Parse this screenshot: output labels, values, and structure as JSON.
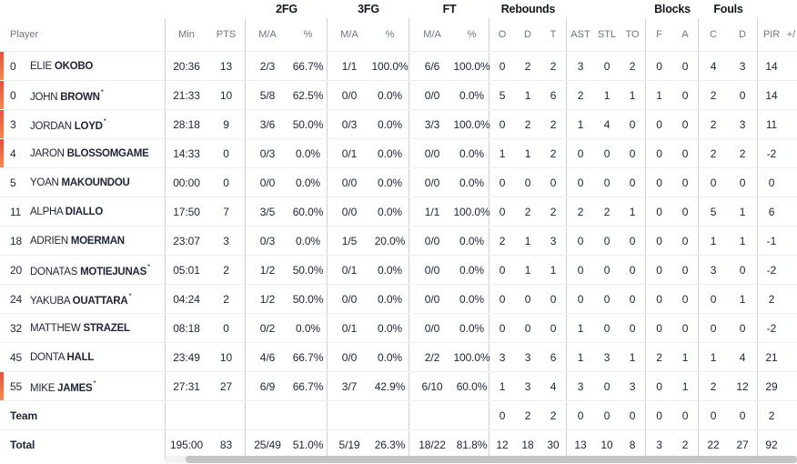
{
  "colors": {
    "on_court_bar_top": "#e84e3d",
    "on_court_bar_bottom": "#f68b4d",
    "stat_text": "#20263a",
    "header_text": "#6e7684"
  },
  "table": {
    "groups": {
      "fg2": "2FG",
      "fg3": "3FG",
      "ft": "FT",
      "rebounds": "Rebounds",
      "blocks": "Blocks",
      "fouls": "Fouls"
    },
    "columns": [
      "Player",
      "Min",
      "PTS",
      "M/A",
      "%",
      "M/A",
      "%",
      "M/A",
      "%",
      "O",
      "D",
      "T",
      "AST",
      "STL",
      "TO",
      "F",
      "A",
      "C",
      "D",
      "PIR",
      "+/"
    ],
    "team_label": "Team",
    "total_label": "Total",
    "players": [
      {
        "number": "0",
        "first": "ELIE",
        "last": "OKOBO",
        "starter": false,
        "on_court": true,
        "stats": [
          "20:36",
          "13",
          "2/3",
          "66.7%",
          "1/1",
          "100.0%",
          "6/6",
          "100.0%",
          "0",
          "2",
          "2",
          "3",
          "0",
          "2",
          "0",
          "0",
          "4",
          "3",
          "14",
          ""
        ]
      },
      {
        "number": "0",
        "first": "JOHN",
        "last": "BROWN",
        "starter": true,
        "on_court": true,
        "stats": [
          "21:33",
          "10",
          "5/8",
          "62.5%",
          "0/0",
          "0.0%",
          "0/0",
          "0.0%",
          "5",
          "1",
          "6",
          "2",
          "1",
          "1",
          "1",
          "0",
          "2",
          "0",
          "14",
          ""
        ]
      },
      {
        "number": "3",
        "first": "JORDAN",
        "last": "LOYD",
        "starter": true,
        "on_court": true,
        "stats": [
          "28:18",
          "9",
          "3/6",
          "50.0%",
          "0/3",
          "0.0%",
          "3/3",
          "100.0%",
          "0",
          "2",
          "2",
          "1",
          "4",
          "0",
          "0",
          "0",
          "2",
          "3",
          "11",
          ""
        ]
      },
      {
        "number": "4",
        "first": "JARON",
        "last": "BLOSSOMGAME",
        "starter": false,
        "on_court": true,
        "stats": [
          "14:33",
          "0",
          "0/3",
          "0.0%",
          "0/1",
          "0.0%",
          "0/0",
          "0.0%",
          "1",
          "1",
          "2",
          "0",
          "0",
          "0",
          "0",
          "0",
          "2",
          "2",
          "-2",
          ""
        ]
      },
      {
        "number": "5",
        "first": "YOAN",
        "last": "MAKOUNDOU",
        "starter": false,
        "on_court": false,
        "stats": [
          "00:00",
          "0",
          "0/0",
          "0.0%",
          "0/0",
          "0.0%",
          "0/0",
          "0.0%",
          "0",
          "0",
          "0",
          "0",
          "0",
          "0",
          "0",
          "0",
          "0",
          "0",
          "0",
          ""
        ]
      },
      {
        "number": "11",
        "first": "ALPHA",
        "last": "DIALLO",
        "starter": false,
        "on_court": false,
        "stats": [
          "17:50",
          "7",
          "3/5",
          "60.0%",
          "0/0",
          "0.0%",
          "1/1",
          "100.0%",
          "0",
          "2",
          "2",
          "2",
          "2",
          "1",
          "0",
          "0",
          "5",
          "1",
          "6",
          ""
        ]
      },
      {
        "number": "18",
        "first": "ADRIEN",
        "last": "MOERMAN",
        "starter": false,
        "on_court": false,
        "stats": [
          "23:07",
          "3",
          "0/3",
          "0.0%",
          "1/5",
          "20.0%",
          "0/0",
          "0.0%",
          "2",
          "1",
          "3",
          "0",
          "0",
          "0",
          "0",
          "0",
          "1",
          "1",
          "-1",
          ""
        ]
      },
      {
        "number": "20",
        "first": "DONATAS",
        "last": "MOTIEJUNAS",
        "starter": true,
        "on_court": false,
        "stats": [
          "05:01",
          "2",
          "1/2",
          "50.0%",
          "0/1",
          "0.0%",
          "0/0",
          "0.0%",
          "0",
          "1",
          "1",
          "0",
          "0",
          "0",
          "0",
          "0",
          "3",
          "0",
          "-2",
          ""
        ]
      },
      {
        "number": "24",
        "first": "YAKUBA",
        "last": "OUATTARA",
        "starter": true,
        "on_court": false,
        "stats": [
          "04:24",
          "2",
          "1/2",
          "50.0%",
          "0/0",
          "0.0%",
          "0/0",
          "0.0%",
          "0",
          "0",
          "0",
          "0",
          "0",
          "0",
          "0",
          "0",
          "0",
          "1",
          "2",
          ""
        ]
      },
      {
        "number": "32",
        "first": "MATTHEW",
        "last": "STRAZEL",
        "starter": false,
        "on_court": false,
        "stats": [
          "08:18",
          "0",
          "0/2",
          "0.0%",
          "0/1",
          "0.0%",
          "0/0",
          "0.0%",
          "0",
          "0",
          "0",
          "1",
          "0",
          "0",
          "0",
          "0",
          "0",
          "0",
          "-2",
          ""
        ]
      },
      {
        "number": "45",
        "first": "DONTA",
        "last": "HALL",
        "starter": false,
        "on_court": false,
        "stats": [
          "23:49",
          "10",
          "4/6",
          "66.7%",
          "0/0",
          "0.0%",
          "2/2",
          "100.0%",
          "3",
          "3",
          "6",
          "1",
          "3",
          "1",
          "2",
          "1",
          "1",
          "4",
          "21",
          ""
        ]
      },
      {
        "number": "55",
        "first": "MIKE",
        "last": "JAMES",
        "starter": true,
        "on_court": true,
        "stats": [
          "27:31",
          "27",
          "6/9",
          "66.7%",
          "3/7",
          "42.9%",
          "6/10",
          "60.0%",
          "1",
          "3",
          "4",
          "3",
          "0",
          "3",
          "0",
          "1",
          "2",
          "12",
          "29",
          ""
        ]
      }
    ],
    "team_stats": [
      "",
      "",
      "",
      "",
      "",
      "",
      "",
      "",
      "0",
      "2",
      "2",
      "0",
      "0",
      "0",
      "0",
      "0",
      "0",
      "0",
      "2",
      ""
    ],
    "total_stats": [
      "195:00",
      "83",
      "25/49",
      "51.0%",
      "5/19",
      "26.3%",
      "18/22",
      "81.8%",
      "12",
      "18",
      "30",
      "13",
      "10",
      "8",
      "3",
      "2",
      "22",
      "27",
      "92",
      ""
    ]
  }
}
